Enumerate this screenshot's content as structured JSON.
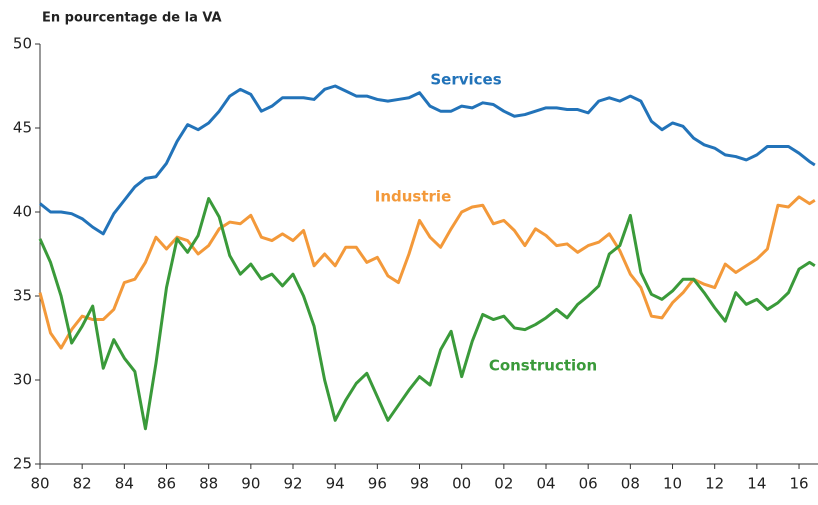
{
  "chart_data": {
    "type": "line",
    "title": "En pourcentage de la VA",
    "x": [
      1980,
      1980.5,
      1981,
      1981.5,
      1982,
      1982.5,
      1983,
      1983.5,
      1984,
      1984.5,
      1985,
      1985.5,
      1986,
      1986.5,
      1987,
      1987.5,
      1988,
      1988.5,
      1989,
      1989.5,
      1990,
      1990.5,
      1991,
      1991.5,
      1992,
      1992.5,
      1993,
      1993.5,
      1994,
      1994.5,
      1995,
      1995.5,
      1996,
      1996.5,
      1997,
      1997.5,
      1998,
      1998.5,
      1999,
      1999.5,
      2000,
      2000.5,
      2001,
      2001.5,
      2002,
      2002.5,
      2003,
      2003.5,
      2004,
      2004.5,
      2005,
      2005.5,
      2006,
      2006.5,
      2007,
      2007.5,
      2008,
      2008.5,
      2009,
      2009.5,
      2010,
      2010.5,
      2011,
      2011.5,
      2012,
      2012.5,
      2013,
      2013.5,
      2014,
      2014.5,
      2015,
      2015.5,
      2016,
      2016.5,
      2016.75
    ],
    "series": [
      {
        "name": "Services",
        "color": "#2273b9",
        "values": [
          40.5,
          40.0,
          40.0,
          39.9,
          39.6,
          39.1,
          38.7,
          39.9,
          40.7,
          41.5,
          42.0,
          42.1,
          42.9,
          44.2,
          45.2,
          44.9,
          45.3,
          46.0,
          46.9,
          47.3,
          47.0,
          46.0,
          46.3,
          46.8,
          46.8,
          46.8,
          46.7,
          47.3,
          47.5,
          47.2,
          46.9,
          46.9,
          46.7,
          46.6,
          46.7,
          46.8,
          47.1,
          46.3,
          46.0,
          46.0,
          46.3,
          46.2,
          46.5,
          46.4,
          46.0,
          45.7,
          45.8,
          46.0,
          46.2,
          46.2,
          46.1,
          46.1,
          45.9,
          46.6,
          46.8,
          46.6,
          46.9,
          46.6,
          45.4,
          44.9,
          45.3,
          45.1,
          44.4,
          44.0,
          43.8,
          43.4,
          43.3,
          43.1,
          43.4,
          43.9,
          43.9,
          43.9,
          43.5,
          43.0,
          42.8
        ]
      },
      {
        "name": "Industrie",
        "color": "#f3993a",
        "values": [
          35.2,
          32.8,
          31.9,
          33.0,
          33.8,
          33.6,
          33.6,
          34.2,
          35.8,
          36.0,
          37.0,
          38.5,
          37.8,
          38.5,
          38.3,
          37.5,
          38.0,
          39.0,
          39.4,
          39.3,
          39.8,
          38.5,
          38.3,
          38.7,
          38.3,
          38.9,
          36.8,
          37.5,
          36.8,
          37.9,
          37.9,
          37.0,
          37.3,
          36.2,
          35.8,
          37.5,
          39.5,
          38.5,
          37.9,
          39.0,
          40.0,
          40.3,
          40.4,
          39.3,
          39.5,
          38.9,
          38.0,
          39.0,
          38.6,
          38.0,
          38.1,
          37.6,
          38.0,
          38.2,
          38.7,
          37.7,
          36.3,
          35.5,
          33.8,
          33.7,
          34.6,
          35.2,
          36.0,
          35.7,
          35.5,
          36.9,
          36.4,
          36.8,
          37.2,
          37.8,
          40.4,
          40.3,
          40.9,
          40.5,
          40.7
        ]
      },
      {
        "name": "Construction",
        "color": "#3a9a3a",
        "values": [
          38.4,
          37.0,
          35.0,
          32.2,
          33.2,
          34.4,
          30.7,
          32.4,
          31.3,
          30.5,
          27.1,
          31.0,
          35.5,
          38.4,
          37.6,
          38.6,
          40.8,
          39.7,
          37.4,
          36.3,
          36.9,
          36.0,
          36.3,
          35.6,
          36.3,
          35.0,
          33.2,
          30.0,
          27.6,
          28.8,
          29.8,
          30.4,
          29.0,
          27.6,
          28.5,
          29.4,
          30.2,
          29.7,
          31.8,
          32.9,
          30.2,
          32.3,
          33.9,
          33.6,
          33.8,
          33.1,
          33.0,
          33.3,
          33.7,
          34.2,
          33.7,
          34.5,
          35.0,
          35.6,
          37.5,
          38.0,
          39.8,
          36.4,
          35.1,
          34.8,
          35.3,
          36.0,
          36.0,
          35.2,
          34.3,
          33.5,
          35.2,
          34.5,
          34.8,
          34.2,
          34.6,
          35.2,
          36.6,
          37.0,
          36.8
        ]
      }
    ],
    "xlim": [
      1980,
      2016.9
    ],
    "xticks": [
      {
        "value": 1980,
        "label": "80"
      },
      {
        "value": 1982,
        "label": "82"
      },
      {
        "value": 1984,
        "label": "84"
      },
      {
        "value": 1986,
        "label": "86"
      },
      {
        "value": 1988,
        "label": "88"
      },
      {
        "value": 1990,
        "label": "90"
      },
      {
        "value": 1992,
        "label": "92"
      },
      {
        "value": 1994,
        "label": "94"
      },
      {
        "value": 1996,
        "label": "96"
      },
      {
        "value": 1998,
        "label": "98"
      },
      {
        "value": 2000,
        "label": "00"
      },
      {
        "value": 2002,
        "label": "02"
      },
      {
        "value": 2004,
        "label": "04"
      },
      {
        "value": 2006,
        "label": "06"
      },
      {
        "value": 2008,
        "label": "08"
      },
      {
        "value": 2010,
        "label": "10"
      },
      {
        "value": 2012,
        "label": "12"
      },
      {
        "value": 2014,
        "label": "14"
      },
      {
        "value": 2016,
        "label": "16"
      }
    ],
    "ylim": [
      25,
      50
    ],
    "yticks": [
      25,
      30,
      35,
      40,
      45,
      50
    ],
    "grid": false
  }
}
